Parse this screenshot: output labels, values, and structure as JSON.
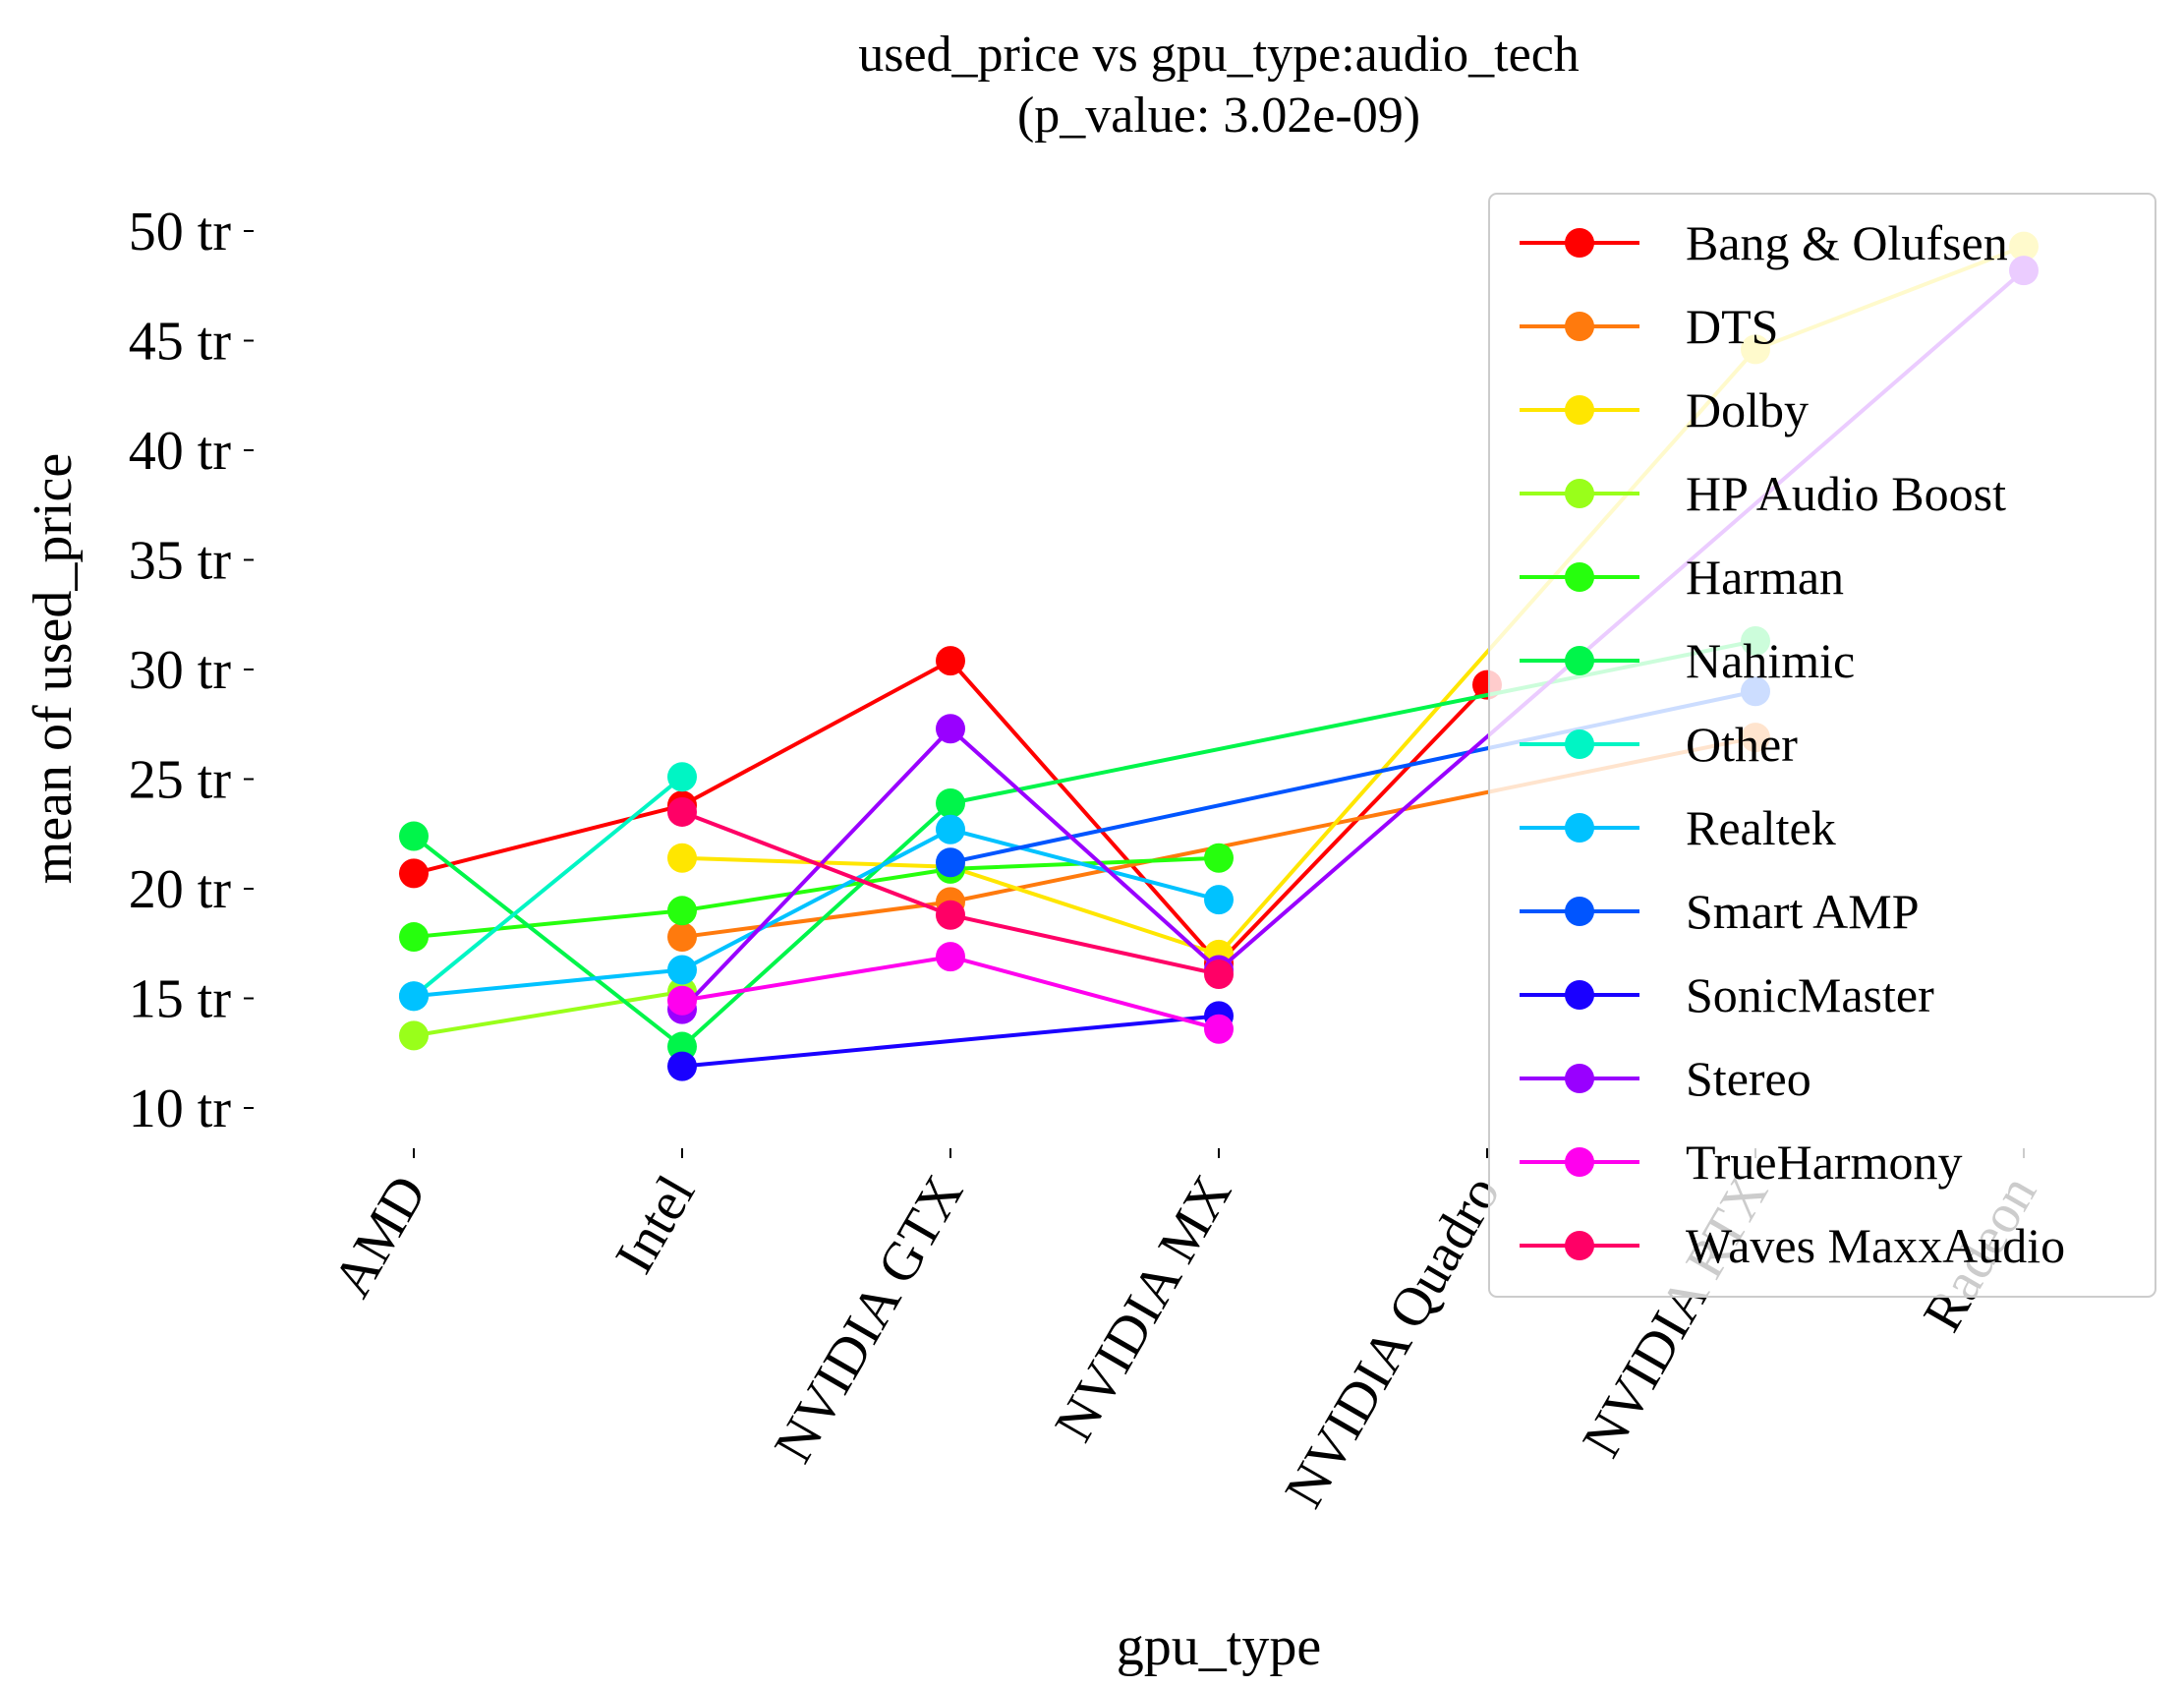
{
  "chart_data": {
    "type": "line",
    "title": "used_price vs gpu_type:audio_tech",
    "subtitle": "(p_value: 3.02e-09)",
    "xlabel": "gpu_type",
    "ylabel": "mean of used_price",
    "categories": [
      "AMD",
      "Intel",
      "NVIDIA GTX",
      "NVIDIA MX",
      "NVIDIA Quadro",
      "NVIDIA RTX",
      "Radeon"
    ],
    "yticks": [
      "10 tr",
      "15 tr",
      "20 tr",
      "25 tr",
      "30 tr",
      "35 tr",
      "40 tr",
      "45 tr",
      "50 tr"
    ],
    "ytick_values": [
      10,
      15,
      20,
      25,
      30,
      35,
      40,
      45,
      50
    ],
    "ylim": [
      8,
      51.5
    ],
    "grid": false,
    "legend_position": "upper right",
    "series": [
      {
        "name": "Bang & Olufsen",
        "color": "#ff0000",
        "values": [
          20.7,
          23.8,
          30.4,
          16.6,
          29.3,
          null,
          null
        ]
      },
      {
        "name": "DTS",
        "color": "#ff7a0d",
        "values": [
          null,
          17.8,
          19.4,
          null,
          null,
          26.9,
          null
        ]
      },
      {
        "name": "Dolby",
        "color": "#ffe600",
        "values": [
          null,
          21.4,
          21.0,
          17.0,
          null,
          44.6,
          49.3
        ]
      },
      {
        "name": "HP Audio Boost",
        "color": "#99ff1a",
        "values": [
          13.3,
          15.3,
          null,
          null,
          null,
          null,
          null
        ]
      },
      {
        "name": "Harman",
        "color": "#26ff0d",
        "values": [
          17.8,
          19.0,
          20.9,
          21.4,
          null,
          null,
          null
        ]
      },
      {
        "name": "Nahimic",
        "color": "#00f54a",
        "values": [
          22.4,
          12.8,
          23.9,
          null,
          null,
          31.3,
          null
        ]
      },
      {
        "name": "Other",
        "color": "#00f5c4",
        "values": [
          15.1,
          25.1,
          null,
          null,
          null,
          null,
          null
        ]
      },
      {
        "name": "Realtek",
        "color": "#00c2ff",
        "values": [
          15.1,
          16.3,
          22.7,
          19.5,
          null,
          null,
          null
        ]
      },
      {
        "name": "Smart AMP",
        "color": "#0055ff",
        "values": [
          null,
          null,
          21.2,
          null,
          null,
          29.0,
          null
        ]
      },
      {
        "name": "SonicMaster",
        "color": "#1a00ff",
        "values": [
          null,
          11.9,
          null,
          14.2,
          null,
          null,
          null
        ]
      },
      {
        "name": "Stereo",
        "color": "#9900ff",
        "values": [
          null,
          14.5,
          27.3,
          16.3,
          null,
          null,
          48.2
        ]
      },
      {
        "name": "TrueHarmony",
        "color": "#ff00ee",
        "values": [
          null,
          14.9,
          16.9,
          13.6,
          null,
          null,
          null
        ]
      },
      {
        "name": "Waves MaxxAudio",
        "color": "#ff0066",
        "values": [
          null,
          23.5,
          18.8,
          16.1,
          null,
          null,
          null
        ]
      }
    ]
  }
}
